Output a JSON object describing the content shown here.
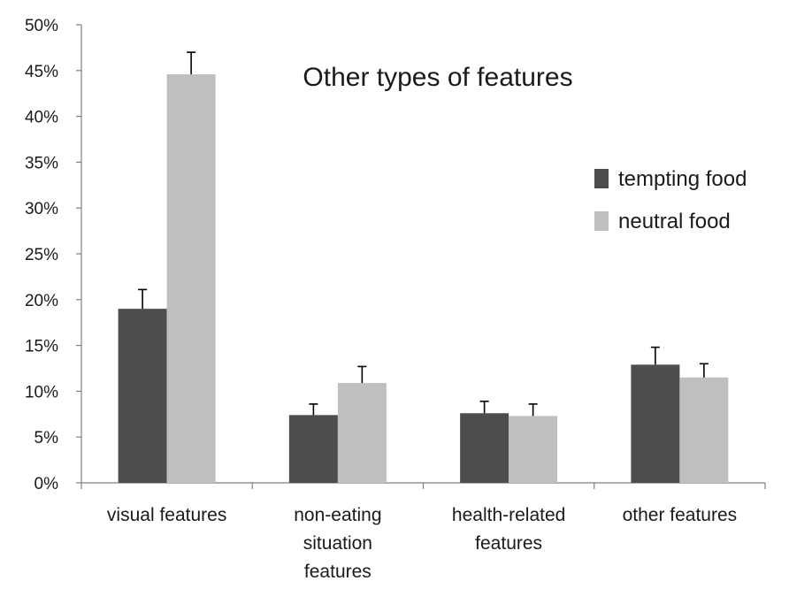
{
  "chart_data": {
    "type": "bar",
    "title": "Other types of features",
    "categories": [
      [
        "visual features"
      ],
      [
        "non-eating",
        "situation",
        "features"
      ],
      [
        "health-related",
        "features"
      ],
      [
        "other features"
      ]
    ],
    "series": [
      {
        "name": "tempting food",
        "color": "#4d4d4d",
        "values": [
          19.0,
          7.4,
          7.6,
          12.9
        ],
        "errors": [
          2.1,
          1.2,
          1.3,
          1.9
        ]
      },
      {
        "name": "neutral food",
        "color": "#bfbfbf",
        "values": [
          44.6,
          10.9,
          7.3,
          11.5
        ],
        "errors": [
          2.4,
          1.8,
          1.3,
          1.5
        ]
      }
    ],
    "ylim": [
      0,
      50
    ],
    "yticks": [
      0,
      5,
      10,
      15,
      20,
      25,
      30,
      35,
      40,
      45,
      50
    ],
    "ytick_labels": [
      "0%",
      "5%",
      "10%",
      "15%",
      "20%",
      "25%",
      "30%",
      "35%",
      "40%",
      "45%",
      "50%"
    ],
    "xlabel": "",
    "ylabel": "",
    "legend_position": "right",
    "grid": false
  }
}
